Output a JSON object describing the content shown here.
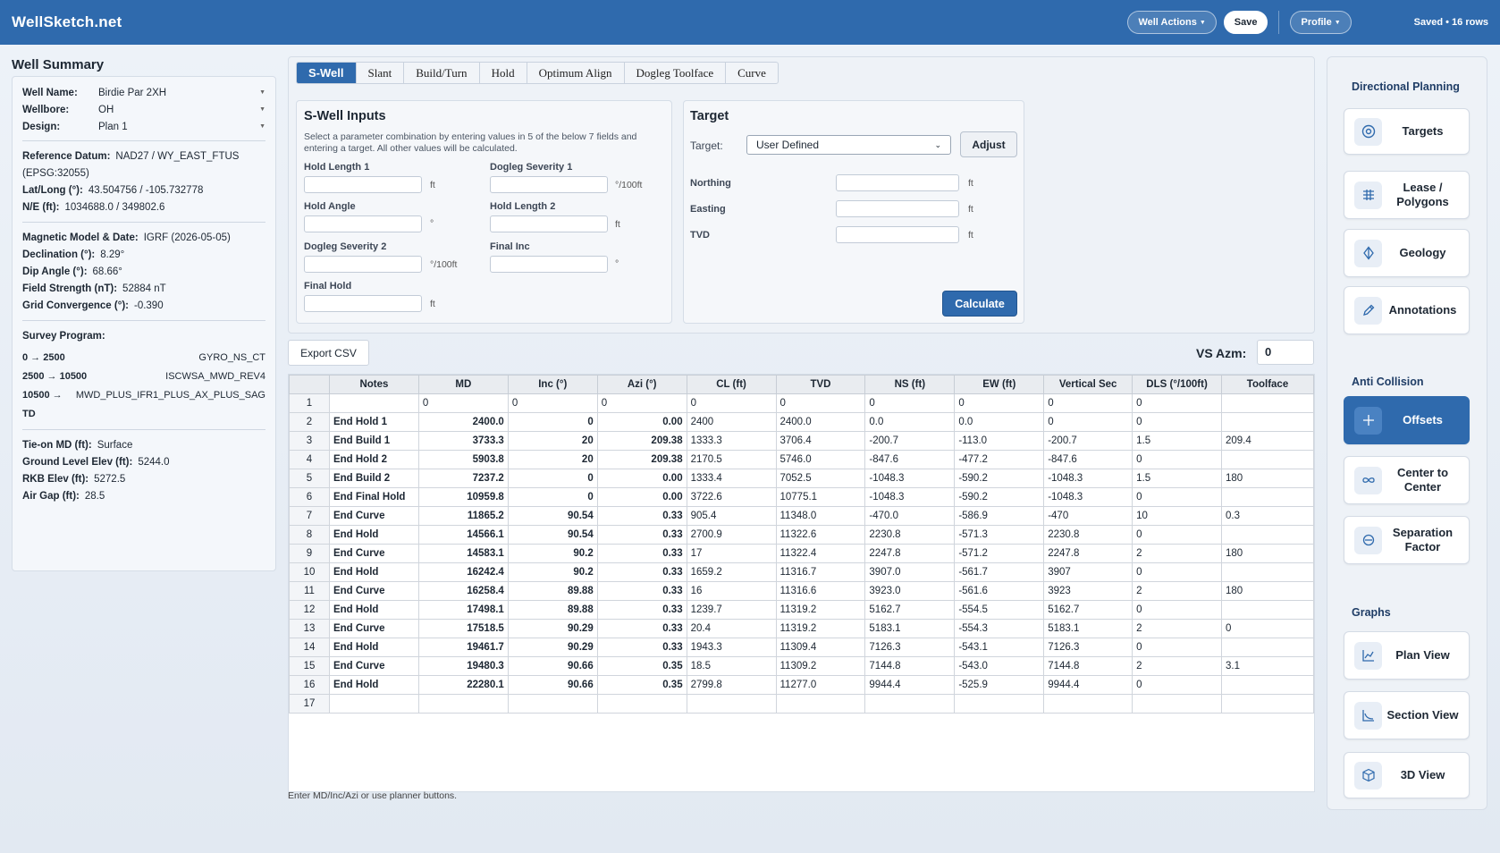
{
  "app": {
    "brand": "WellSketch.net",
    "well_actions": "Well Actions",
    "save": "Save",
    "profile": "Profile",
    "status": "Saved • 16 rows"
  },
  "summary": {
    "title": "Well Summary",
    "well_name_label": "Well Name:",
    "well_name": "Birdie Par 2XH",
    "wellbore_label": "Wellbore:",
    "wellbore": "OH",
    "design_label": "Design:",
    "design": "Plan 1",
    "ref_datum_label": "Reference Datum:",
    "ref_datum": "NAD27 / WY_EAST_FTUS (EPSG:32055)",
    "latlong_label": "Lat/Long (°):",
    "latlong": "43.504756 / -105.732778",
    "ne_label": "N/E (ft):",
    "ne": "1034688.0 / 349802.6",
    "mag_label": "Magnetic Model & Date:",
    "mag": "IGRF (2026-05-05)",
    "decl_label": "Declination (°):",
    "decl": "8.29°",
    "dip_label": "Dip Angle (°):",
    "dip": "68.66°",
    "field_label": "Field Strength (nT):",
    "field": "52884 nT",
    "grid_label": "Grid Convergence (°):",
    "grid": "-0.390",
    "survey_label": "Survey Program:",
    "survey": [
      {
        "range": "0 → 2500",
        "tool": "GYRO_NS_CT"
      },
      {
        "range": "2500 → 10500",
        "tool": "ISCWSA_MWD_REV4"
      },
      {
        "range": "10500 → TD",
        "tool": "MWD_PLUS_IFR1_PLUS_AX_PLUS_SAG"
      }
    ],
    "tieon_label": "Tie-on MD (ft):",
    "tieon": "Surface",
    "gle_label": "Ground Level Elev (ft):",
    "gle": "5244.0",
    "rkb_label": "RKB Elev (ft):",
    "rkb": "5272.5",
    "airgap_label": "Air Gap (ft):",
    "airgap": "28.5"
  },
  "tabs": [
    "S-Well",
    "Slant",
    "Build/Turn",
    "Hold",
    "Optimum Align",
    "Dogleg Toolface",
    "Curve"
  ],
  "inputs": {
    "title": "S-Well Inputs",
    "desc": "Select a parameter combination by entering values in 5 of the below 7 fields and entering a target. All other values will be calculated.",
    "hold_length_1": "Hold Length 1",
    "dogleg_severity_1": "Dogleg Severity 1",
    "hold_angle": "Hold Angle",
    "hold_length_2": "Hold Length 2",
    "dogleg_severity_2": "Dogleg Severity 2",
    "final_inc": "Final Inc",
    "final_hold": "Final Hold",
    "unit_ft": "ft",
    "unit_deg": "°",
    "unit_dls": "°/100ft"
  },
  "target": {
    "title": "Target",
    "label": "Target:",
    "selected": "User Defined",
    "adjust": "Adjust",
    "northing": "Northing",
    "easting": "Easting",
    "tvd": "TVD",
    "unit": "ft",
    "calculate": "Calculate"
  },
  "table": {
    "export": "Export CSV",
    "vs_azm_label": "VS Azm:",
    "vs_azm": "0",
    "columns": [
      "Notes",
      "MD",
      "Inc (°)",
      "Azi (°)",
      "CL (ft)",
      "TVD",
      "NS (ft)",
      "EW (ft)",
      "Vertical Sec",
      "DLS (°/100ft)",
      "Toolface"
    ],
    "rows": [
      [
        "1",
        "",
        "0",
        "0",
        "0",
        "0",
        "0",
        "0",
        "0",
        "0",
        "0",
        ""
      ],
      [
        "2",
        "End Hold 1",
        "2400.0",
        "0",
        "0.00",
        "2400",
        "2400.0",
        "0.0",
        "0.0",
        "0",
        "0",
        ""
      ],
      [
        "3",
        "End Build 1",
        "3733.3",
        "20",
        "209.38",
        "1333.3",
        "3706.4",
        "-200.7",
        "-113.0",
        "-200.7",
        "1.5",
        "209.4"
      ],
      [
        "4",
        "End Hold 2",
        "5903.8",
        "20",
        "209.38",
        "2170.5",
        "5746.0",
        "-847.6",
        "-477.2",
        "-847.6",
        "0",
        ""
      ],
      [
        "5",
        "End Build 2",
        "7237.2",
        "0",
        "0.00",
        "1333.4",
        "7052.5",
        "-1048.3",
        "-590.2",
        "-1048.3",
        "1.5",
        "180"
      ],
      [
        "6",
        "End Final Hold",
        "10959.8",
        "0",
        "0.00",
        "3722.6",
        "10775.1",
        "-1048.3",
        "-590.2",
        "-1048.3",
        "0",
        ""
      ],
      [
        "7",
        "End Curve",
        "11865.2",
        "90.54",
        "0.33",
        "905.4",
        "11348.0",
        "-470.0",
        "-586.9",
        "-470",
        "10",
        "0.3"
      ],
      [
        "8",
        "End Hold",
        "14566.1",
        "90.54",
        "0.33",
        "2700.9",
        "11322.6",
        "2230.8",
        "-571.3",
        "2230.8",
        "0",
        ""
      ],
      [
        "9",
        "End Curve",
        "14583.1",
        "90.2",
        "0.33",
        "17",
        "11322.4",
        "2247.8",
        "-571.2",
        "2247.8",
        "2",
        "180"
      ],
      [
        "10",
        "End Hold",
        "16242.4",
        "90.2",
        "0.33",
        "1659.2",
        "11316.7",
        "3907.0",
        "-561.7",
        "3907",
        "0",
        ""
      ],
      [
        "11",
        "End Curve",
        "16258.4",
        "89.88",
        "0.33",
        "16",
        "11316.6",
        "3923.0",
        "-561.6",
        "3923",
        "2",
        "180"
      ],
      [
        "12",
        "End Hold",
        "17498.1",
        "89.88",
        "0.33",
        "1239.7",
        "11319.2",
        "5162.7",
        "-554.5",
        "5162.7",
        "0",
        ""
      ],
      [
        "13",
        "End Curve",
        "17518.5",
        "90.29",
        "0.33",
        "20.4",
        "11319.2",
        "5183.1",
        "-554.3",
        "5183.1",
        "2",
        "0"
      ],
      [
        "14",
        "End Hold",
        "19461.7",
        "90.29",
        "0.33",
        "1943.3",
        "11309.4",
        "7126.3",
        "-543.1",
        "7126.3",
        "0",
        ""
      ],
      [
        "15",
        "End Curve",
        "19480.3",
        "90.66",
        "0.35",
        "18.5",
        "11309.2",
        "7144.8",
        "-543.0",
        "7144.8",
        "2",
        "3.1"
      ],
      [
        "16",
        "End Hold",
        "22280.1",
        "90.66",
        "0.35",
        "2799.8",
        "11277.0",
        "9944.4",
        "-525.9",
        "9944.4",
        "0",
        ""
      ],
      [
        "17",
        "",
        "",
        "",
        "",
        "",
        "",
        "",
        "",
        "",
        "",
        ""
      ]
    ],
    "footnote": "Enter MD/Inc/Azi or use planner buttons."
  },
  "sidebar": {
    "section1": "Directional Planning",
    "targets": "Targets",
    "lease": "Lease / Polygons",
    "geology": "Geology",
    "annotations": "Annotations",
    "section2": "Anti Collision",
    "offsets": "Offsets",
    "c2c": "Center to Center",
    "sf": "Separation Factor",
    "section3": "Graphs",
    "plan": "Plan View",
    "section": "Section View",
    "view3d": "3D View"
  },
  "colors": {
    "header": "#2f6aad",
    "accent": "#2f6aad",
    "panel_bg": "#eef2f7"
  }
}
